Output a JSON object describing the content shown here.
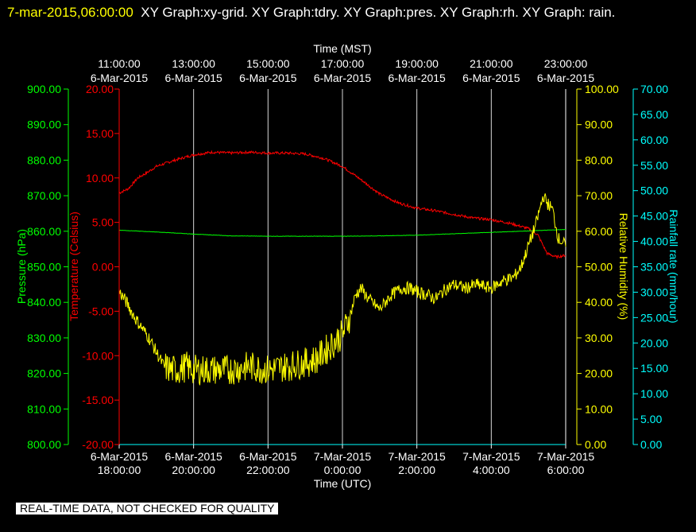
{
  "header": {
    "timestamp": "7-mar-2015,06:00:00",
    "graphs": "XY Graph:xy-grid.  XY Graph:tdry.  XY Graph:pres.  XY Graph:rh.  XY Graph: rain."
  },
  "notice": "REAL-TIME DATA, NOT CHECKED FOR QUALITY",
  "colors": {
    "pressure": "#00ff00",
    "temperature": "#ff0000",
    "humidity": "#ffff00",
    "rainfall": "#00ffff",
    "grid": "#ffffff",
    "background": "#000000"
  },
  "chart_data": {
    "type": "line",
    "top_axis": {
      "label": "Time (MST)",
      "ticks": [
        [
          "11:00:00",
          "6-Mar-2015"
        ],
        [
          "13:00:00",
          "6-Mar-2015"
        ],
        [
          "15:00:00",
          "6-Mar-2015"
        ],
        [
          "17:00:00",
          "6-Mar-2015"
        ],
        [
          "19:00:00",
          "6-Mar-2015"
        ],
        [
          "21:00:00",
          "6-Mar-2015"
        ],
        [
          "23:00:00",
          "6-Mar-2015"
        ]
      ]
    },
    "bottom_axis": {
      "label": "Time (UTC)",
      "ticks": [
        [
          "6-Mar-2015",
          "18:00:00"
        ],
        [
          "6-Mar-2015",
          "20:00:00"
        ],
        [
          "6-Mar-2015",
          "22:00:00"
        ],
        [
          "7-Mar-2015",
          "0:00:00"
        ],
        [
          "7-Mar-2015",
          "2:00:00"
        ],
        [
          "7-Mar-2015",
          "4:00:00"
        ],
        [
          "7-Mar-2015",
          "6:00:00"
        ]
      ]
    },
    "x_unit": "hours UTC since 6-Mar-2015 00:00",
    "xlim": [
      18,
      30
    ],
    "axes": {
      "pressure": {
        "label": "Pressure (hPa)",
        "ylim": [
          800,
          900
        ],
        "ticks": [
          "800.00",
          "810.00",
          "820.00",
          "830.00",
          "840.00",
          "850.00",
          "860.00",
          "870.00",
          "880.00",
          "890.00",
          "900.00"
        ]
      },
      "temperature": {
        "label": "Temperature (Celsius)",
        "ylim": [
          -20,
          20
        ],
        "ticks": [
          "-20.00",
          "-15.00",
          "-10.00",
          "-5.00",
          "0.00",
          "5.00",
          "10.00",
          "15.00",
          "20.00"
        ]
      },
      "humidity": {
        "label": "Relative Humidity (%)",
        "ylim": [
          0,
          100
        ],
        "ticks": [
          "0.00",
          "10.00",
          "20.00",
          "30.00",
          "40.00",
          "50.00",
          "60.00",
          "70.00",
          "80.00",
          "90.00",
          "100.00"
        ]
      },
      "rainfall": {
        "label": "Rainfall rate (mm/hour)",
        "ylim": [
          0,
          70
        ],
        "ticks": [
          "0.00",
          "5.00",
          "10.00",
          "15.00",
          "20.00",
          "25.00",
          "30.00",
          "35.00",
          "40.00",
          "45.00",
          "50.00",
          "55.00",
          "60.00",
          "65.00",
          "70.00"
        ]
      }
    },
    "series": [
      {
        "name": "tdry",
        "axis": "temperature",
        "noise": 0.15,
        "x": [
          18,
          18.25,
          18.5,
          18.75,
          19,
          19.5,
          20,
          20.5,
          21,
          21.5,
          22,
          22.5,
          23,
          23.5,
          24,
          24.5,
          25,
          25.5,
          26,
          26.5,
          27,
          27.5,
          28,
          28.5,
          29,
          29.25,
          29.5,
          29.75,
          30
        ],
        "y": [
          8.3,
          8.8,
          10.0,
          10.6,
          11.3,
          12.0,
          12.6,
          12.9,
          12.8,
          12.9,
          12.8,
          12.8,
          12.7,
          12.2,
          11.3,
          9.8,
          8.2,
          7.2,
          6.6,
          6.3,
          5.9,
          5.5,
          5.3,
          4.9,
          4.3,
          3.6,
          1.5,
          1.1,
          1.3
        ]
      },
      {
        "name": "pres",
        "axis": "pressure",
        "noise": 0.05,
        "x": [
          18,
          19,
          20,
          21,
          22,
          23,
          24,
          25,
          26,
          27,
          28,
          29,
          30
        ],
        "y": [
          860.3,
          859.8,
          859.2,
          858.7,
          858.6,
          858.6,
          858.6,
          858.7,
          858.9,
          859.3,
          859.7,
          860.1,
          860.5
        ]
      },
      {
        "name": "rh",
        "axis": "humidity",
        "noise": 1.8,
        "x": [
          18,
          18.2,
          18.4,
          18.6,
          18.8,
          19,
          19.2,
          19.4,
          19.6,
          19.8,
          20,
          20.5,
          21,
          21.5,
          22,
          22.5,
          23,
          23.3,
          23.6,
          23.8,
          24,
          24.2,
          24.35,
          24.5,
          24.7,
          25,
          25.3,
          25.6,
          25.8,
          26,
          26.3,
          26.5,
          26.8,
          27,
          27.3,
          27.6,
          28,
          28.3,
          28.6,
          28.8,
          29,
          29.2,
          29.4,
          29.5,
          29.65,
          29.8,
          30
        ],
        "y": [
          43,
          40,
          36,
          33,
          30,
          26,
          22,
          21,
          21,
          22,
          21,
          21,
          21,
          22,
          21,
          22,
          23,
          24,
          27,
          29,
          31,
          36,
          42,
          44,
          41,
          38,
          42,
          44,
          44,
          43,
          42,
          41,
          44,
          45,
          44,
          45,
          44,
          46,
          47,
          50,
          56,
          62,
          70,
          68,
          66,
          58,
          56
        ]
      },
      {
        "name": "rain",
        "axis": "rainfall",
        "noise": 0,
        "x": [
          18,
          30
        ],
        "y": [
          0,
          0
        ]
      }
    ]
  }
}
